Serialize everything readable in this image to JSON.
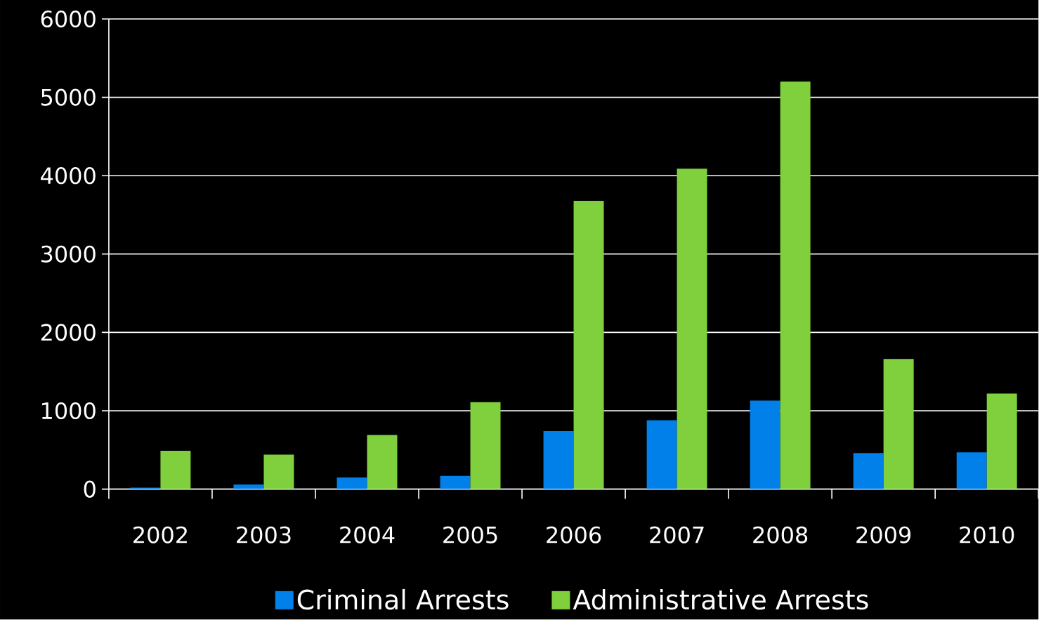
{
  "chart_data": {
    "type": "bar",
    "categories": [
      "2002",
      "2003",
      "2004",
      "2005",
      "2006",
      "2007",
      "2008",
      "2009",
      "2010"
    ],
    "series": [
      {
        "name": "Criminal Arrests",
        "color": "#0080e8",
        "values": [
          20,
          60,
          150,
          170,
          740,
          880,
          1130,
          460,
          470
        ]
      },
      {
        "name": "Administrative Arrests",
        "color": "#80cf3c",
        "values": [
          490,
          440,
          690,
          1110,
          3680,
          4090,
          5200,
          1660,
          1220
        ]
      }
    ],
    "ylim": [
      0,
      6000
    ],
    "yticks": [
      0,
      1000,
      2000,
      3000,
      4000,
      5000,
      6000
    ],
    "grid": "y",
    "legend": "bottom"
  }
}
